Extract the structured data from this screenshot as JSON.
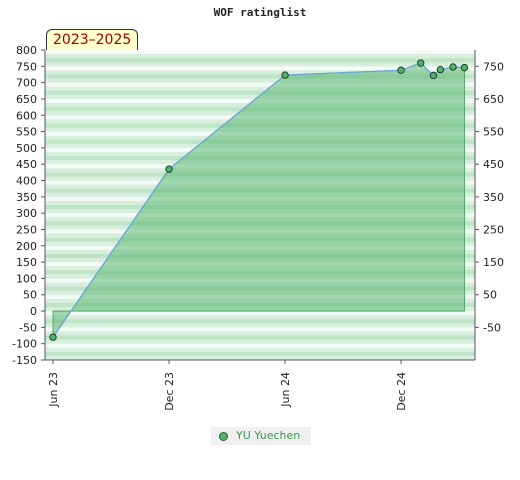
{
  "badge_label": "2023–2025",
  "chart_data": {
    "type": "area",
    "title": "WOF ratinglist",
    "x_tick_labels": [
      "Jun 23",
      "Dec 23",
      "Jun 24",
      "Dec 24"
    ],
    "x_ticks": [
      "2023-06-01",
      "2023-12-01",
      "2024-06-01",
      "2024-12-01"
    ],
    "xlim": [
      "2023-06-01",
      "2025-03-15"
    ],
    "left_axis": {
      "ylim": [
        -150,
        800
      ],
      "ticks": [
        -150,
        -100,
        -50,
        0,
        50,
        100,
        150,
        200,
        250,
        300,
        350,
        400,
        450,
        500,
        550,
        600,
        650,
        700,
        750,
        800
      ]
    },
    "right_axis": {
      "ylim": [
        -150,
        800
      ],
      "ticks": [
        -50,
        50,
        150,
        250,
        350,
        450,
        550,
        650,
        750
      ]
    },
    "grid": true,
    "legend_position": "bottom-center",
    "series": [
      {
        "name": "YU Yuechen",
        "color": "#4fb36a",
        "points": [
          {
            "x": "2023-06-01",
            "y": -80
          },
          {
            "x": "2023-12-01",
            "y": 435
          },
          {
            "x": "2024-06-01",
            "y": 723
          },
          {
            "x": "2024-12-01",
            "y": 738
          },
          {
            "x": "2025-01-01",
            "y": 760
          },
          {
            "x": "2025-01-21",
            "y": 722
          },
          {
            "x": "2025-02-01",
            "y": 740
          },
          {
            "x": "2025-02-21",
            "y": 748
          },
          {
            "x": "2025-03-11",
            "y": 746
          }
        ]
      }
    ]
  }
}
